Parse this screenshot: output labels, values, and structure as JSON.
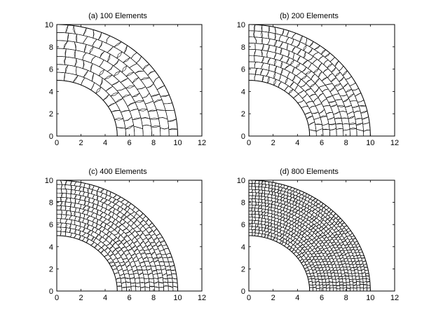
{
  "figure": {
    "panels": [
      {
        "title": "(a) 100 Elements",
        "elements": 100
      },
      {
        "title": "(b) 200 Elements",
        "elements": 200
      },
      {
        "title": "(c) 400 Elements",
        "elements": 400
      },
      {
        "title": "(d) 800 Elements",
        "elements": 800
      }
    ]
  },
  "chart_data": {
    "type": "mesh",
    "geometry": "quarter annulus",
    "inner_radius": 5,
    "outer_radius": 10,
    "xlim": [
      0,
      12
    ],
    "ylim": [
      0,
      10
    ],
    "xticks": [
      0,
      2,
      4,
      6,
      8,
      10,
      12
    ],
    "yticks": [
      0,
      2,
      4,
      6,
      8,
      10
    ],
    "xtick_labels": [
      "0",
      "2",
      "4",
      "6",
      "8",
      "10",
      "12"
    ],
    "ytick_labels": [
      "0",
      "2",
      "4",
      "6",
      "8",
      "10"
    ],
    "grid": false,
    "line_color": "#000000"
  }
}
